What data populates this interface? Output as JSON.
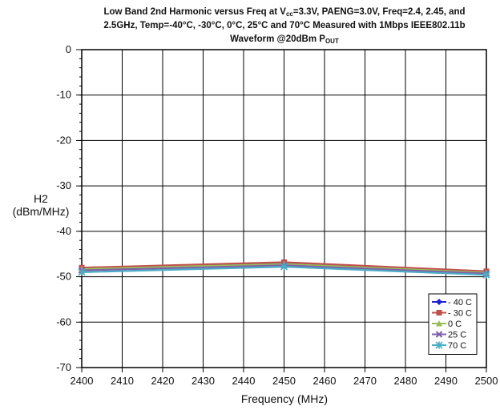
{
  "chart_data": {
    "type": "line",
    "title_lines": [
      {
        "text": "Low Band  2nd Harmonic versus Freq at V",
        "sub": "cc",
        "after": "=3.3V, PAENG=3.0V, Freq=2.4, 2.45, and"
      },
      {
        "text": "2.5GHz, Temp=-40°C, -30°C, 0°C, 25°C and 70°C Measured with 1Mbps IEEE802.11b",
        "sub": "",
        "after": ""
      },
      {
        "text": "Waveform @20dBm P",
        "sub": "OUT",
        "after": ""
      }
    ],
    "ylabel_line1": "H2",
    "ylabel_line2": "(dBm/MHz)",
    "xlabel": "Frequency (MHz)",
    "xlim": [
      2400,
      2500
    ],
    "ylim": [
      -70,
      0
    ],
    "x_ticks": [
      "2400",
      "2410",
      "2420",
      "2430",
      "2440",
      "2450",
      "2460",
      "2470",
      "2480",
      "2490",
      "2500"
    ],
    "y_ticks": [
      "0",
      "-10",
      "-20",
      "-30",
      "-40",
      "-50",
      "-60",
      "-70"
    ],
    "x": [
      2400,
      2450,
      2500
    ],
    "series": [
      {
        "name": "- 40 C",
        "values": [
          -48.2,
          -47.0,
          -49.0
        ],
        "color": "#1f1fd6",
        "marker": "diamond"
      },
      {
        "name": "- 30 C",
        "values": [
          -48.0,
          -46.8,
          -48.8
        ],
        "color": "#c0504d",
        "marker": "square"
      },
      {
        "name": "0 C",
        "values": [
          -48.3,
          -47.2,
          -49.1
        ],
        "color": "#9bbb59",
        "marker": "triangle"
      },
      {
        "name": "25 C",
        "values": [
          -48.6,
          -47.5,
          -49.3
        ],
        "color": "#7f60a8",
        "marker": "x"
      },
      {
        "name": "70 C",
        "values": [
          -49.0,
          -47.8,
          -49.6
        ],
        "color": "#4bacc6",
        "marker": "star"
      }
    ],
    "grid": true,
    "legend_position": "bottom-right"
  }
}
